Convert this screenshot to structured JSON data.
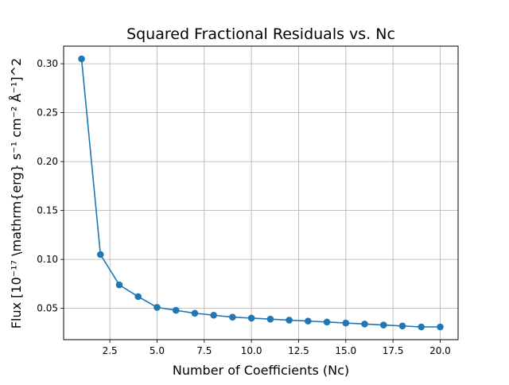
{
  "chart_data": {
    "type": "line",
    "title": "Squared Fractional Residuals vs. Nc",
    "xlabel": "Number of Coefficients (Nc)",
    "ylabel": "Flux [10⁻¹⁷ \\mathrm{erg} s⁻¹ cm⁻² Å⁻¹]^2",
    "xlim": [
      0.05,
      20.95
    ],
    "ylim": [
      0.018,
      0.318
    ],
    "xticks": [
      2.5,
      5.0,
      7.5,
      10.0,
      12.5,
      15.0,
      17.5,
      20.0
    ],
    "xtick_labels": [
      "2.5",
      "5.0",
      "7.5",
      "10.0",
      "12.5",
      "15.0",
      "17.5",
      "20.0"
    ],
    "yticks": [
      0.05,
      0.1,
      0.15,
      0.2,
      0.25,
      0.3
    ],
    "ytick_labels": [
      "0.05",
      "0.10",
      "0.15",
      "0.20",
      "0.25",
      "0.30"
    ],
    "grid": true,
    "color": "#1f77b4",
    "marker": "circle",
    "series": [
      {
        "x": [
          1,
          2,
          3,
          4,
          5,
          6,
          7,
          8,
          9,
          10,
          11,
          12,
          13,
          14,
          15,
          16,
          17,
          18,
          19,
          20
        ],
        "values": [
          0.305,
          0.105,
          0.074,
          0.062,
          0.051,
          0.048,
          0.045,
          0.043,
          0.041,
          0.04,
          0.039,
          0.038,
          0.037,
          0.036,
          0.035,
          0.034,
          0.033,
          0.032,
          0.031,
          0.031
        ]
      }
    ]
  }
}
